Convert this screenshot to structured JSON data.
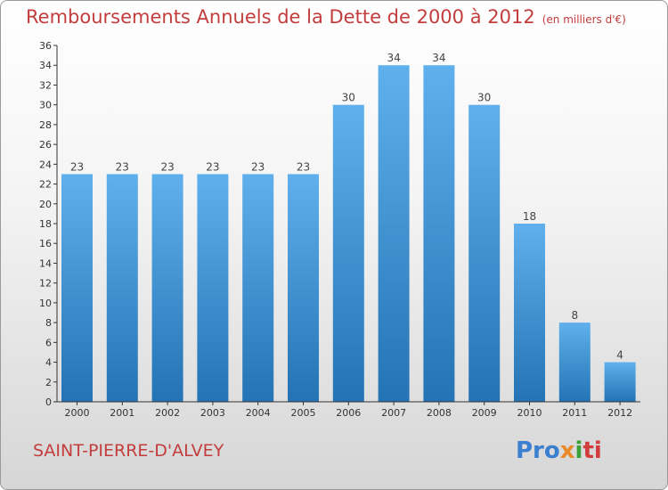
{
  "header": {
    "title": "Remboursements Annuels de la Dette de 2000 à 2012",
    "subtitle": "(en milliers d'€)"
  },
  "footer": {
    "commune": "SAINT-PIERRE-D'ALVEY",
    "logo": {
      "p1": "Pro",
      "p2": "x",
      "p3": "i",
      "p4": "ti"
    }
  },
  "colors": {
    "title": "#c33d3d",
    "bar_top": "#5fb0ec",
    "bar_bottom": "#2473b4",
    "axis": "#333333"
  },
  "chart_data": {
    "type": "bar",
    "title": "Remboursements Annuels de la Dette de 2000 à 2012",
    "subtitle": "(en milliers d'€)",
    "categories": [
      "2000",
      "2001",
      "2002",
      "2003",
      "2004",
      "2005",
      "2006",
      "2007",
      "2008",
      "2009",
      "2010",
      "2011",
      "2012"
    ],
    "values": [
      23,
      23,
      23,
      23,
      23,
      23,
      30,
      34,
      34,
      30,
      18,
      8,
      4
    ],
    "ylim": [
      0,
      36
    ],
    "yticks": [
      0,
      2,
      4,
      6,
      8,
      10,
      12,
      14,
      16,
      18,
      20,
      22,
      24,
      26,
      28,
      30,
      32,
      34,
      36
    ],
    "grid": false,
    "legend": "none"
  }
}
